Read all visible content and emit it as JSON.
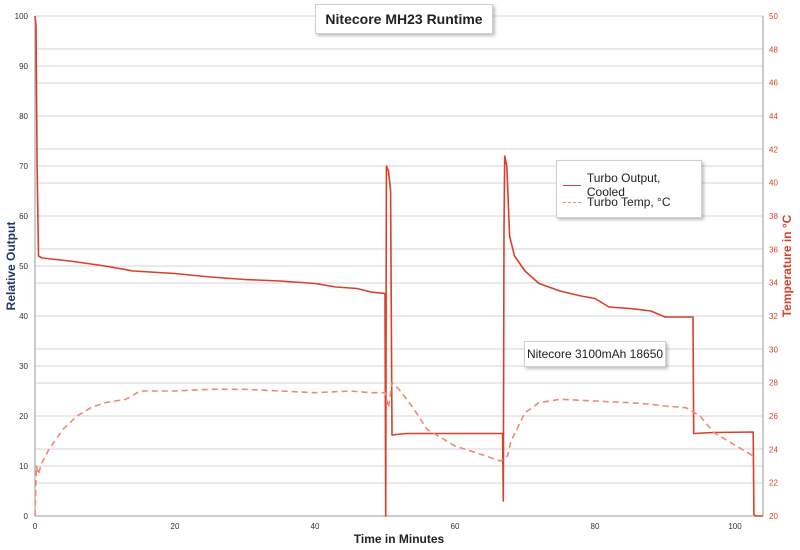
{
  "chart_data": {
    "type": "line",
    "title": "Nitecore MH23 Runtime",
    "xlabel": "Time in Minutes",
    "ylabel": "Relative Output",
    "y2label": "Temperature in °C",
    "xlim": [
      0,
      104
    ],
    "ylim": [
      0,
      100
    ],
    "y2lim": [
      20,
      50
    ],
    "x_ticks": [
      0,
      20,
      40,
      60,
      80,
      100
    ],
    "y_ticks": [
      0,
      10,
      20,
      30,
      40,
      50,
      60,
      70,
      80,
      90,
      100
    ],
    "y2_ticks": [
      20,
      22,
      24,
      26,
      28,
      30,
      32,
      34,
      36,
      38,
      40,
      42,
      44,
      46,
      48,
      50
    ],
    "annotation": "Nitecore 3100mAh 18650",
    "legend_position": "right",
    "series": [
      {
        "name": "Turbo Output, Cooled",
        "axis": "left",
        "color": "#d9402b",
        "style": "solid",
        "points": [
          [
            0,
            100
          ],
          [
            0.15,
            98
          ],
          [
            0.3,
            70
          ],
          [
            0.5,
            52
          ],
          [
            1,
            51.6
          ],
          [
            5,
            51
          ],
          [
            10,
            50
          ],
          [
            14,
            49
          ],
          [
            20,
            48.5
          ],
          [
            25,
            47.8
          ],
          [
            30,
            47.3
          ],
          [
            35,
            47
          ],
          [
            40,
            46.5
          ],
          [
            43,
            45.8
          ],
          [
            46,
            45.5
          ],
          [
            48,
            44.8
          ],
          [
            50,
            44.5
          ],
          [
            50.1,
            0
          ],
          [
            50.2,
            70
          ],
          [
            50.5,
            69
          ],
          [
            50.8,
            65
          ],
          [
            51,
            16.2
          ],
          [
            53,
            16.5
          ],
          [
            60,
            16.5
          ],
          [
            66.8,
            16.5
          ],
          [
            66.9,
            3
          ],
          [
            67,
            57
          ],
          [
            67.1,
            72
          ],
          [
            67.4,
            70
          ],
          [
            67.8,
            56
          ],
          [
            68.5,
            52
          ],
          [
            70,
            49
          ],
          [
            72,
            46.5
          ],
          [
            75,
            45
          ],
          [
            78,
            44
          ],
          [
            80,
            43.5
          ],
          [
            82,
            41.8
          ],
          [
            85,
            41.5
          ],
          [
            88,
            41
          ],
          [
            90,
            39.8
          ],
          [
            94,
            39.8
          ],
          [
            94.1,
            16.5
          ],
          [
            97,
            16.7
          ],
          [
            102.6,
            16.8
          ],
          [
            102.7,
            0.3
          ],
          [
            103,
            0
          ],
          [
            104,
            0
          ]
        ]
      },
      {
        "name": "Turbo Temp, °C",
        "axis": "right",
        "color": "#f08878",
        "style": "dashed",
        "points": [
          [
            0,
            20
          ],
          [
            0.2,
            23
          ],
          [
            0.5,
            22.5
          ],
          [
            0.8,
            23
          ],
          [
            1,
            23.2
          ],
          [
            2,
            24
          ],
          [
            4,
            25.2
          ],
          [
            6,
            26
          ],
          [
            8,
            26.5
          ],
          [
            10,
            26.8
          ],
          [
            13,
            27
          ],
          [
            15,
            27.5
          ],
          [
            20,
            27.5
          ],
          [
            25,
            27.6
          ],
          [
            30,
            27.6
          ],
          [
            35,
            27.5
          ],
          [
            40,
            27.4
          ],
          [
            45,
            27.5
          ],
          [
            48,
            27.4
          ],
          [
            50,
            27.4
          ],
          [
            50.5,
            26.5
          ],
          [
            51,
            28
          ],
          [
            52,
            27.6
          ],
          [
            54,
            26.5
          ],
          [
            56,
            25.2
          ],
          [
            58,
            24.7
          ],
          [
            60,
            24.2
          ],
          [
            63,
            23.8
          ],
          [
            66.5,
            23.3
          ],
          [
            67.5,
            23.6
          ],
          [
            68,
            24.5
          ],
          [
            70,
            26.2
          ],
          [
            72,
            26.8
          ],
          [
            75,
            27
          ],
          [
            80,
            26.9
          ],
          [
            85,
            26.8
          ],
          [
            88,
            26.7
          ],
          [
            90,
            26.6
          ],
          [
            93,
            26.5
          ],
          [
            95,
            26
          ],
          [
            97,
            25
          ],
          [
            99,
            24.5
          ],
          [
            101,
            24
          ],
          [
            103,
            23.5
          ]
        ]
      }
    ]
  }
}
